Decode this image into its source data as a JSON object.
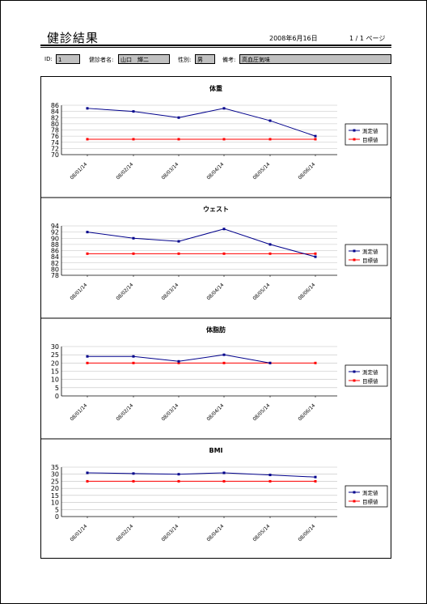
{
  "header": {
    "title": "健診結果",
    "date": "2008年6月16日",
    "page": "1 / 1 ページ"
  },
  "fields": {
    "id_label": "ID:",
    "id_value": "1",
    "name_label": "健診者名:",
    "name_value": "山口　輝二",
    "sex_label": "性別:",
    "sex_value": "男",
    "note_label": "備考:",
    "note_value": "高血圧気味"
  },
  "legend": {
    "measured": "測定値",
    "target": "目標値"
  },
  "colors": {
    "measured": "#00008b",
    "target": "#ff0000",
    "grid": "#c0c0c0"
  },
  "chart_data": [
    {
      "type": "line",
      "title": "体重",
      "x": [
        "08/01/14",
        "08/02/14",
        "08/03/14",
        "08/04/14",
        "08/05/14",
        "08/06/14"
      ],
      "ylim": [
        70,
        86
      ],
      "yticks": [
        70,
        72,
        74,
        76,
        78,
        80,
        82,
        84,
        86
      ],
      "series": [
        {
          "name": "測定値",
          "values": [
            85,
            84,
            82,
            85,
            81,
            76
          ]
        },
        {
          "name": "目標値",
          "values": [
            75,
            75,
            75,
            75,
            75,
            75
          ]
        }
      ]
    },
    {
      "type": "line",
      "title": "ウェスト",
      "x": [
        "08/01/14",
        "08/02/14",
        "08/03/14",
        "08/04/14",
        "08/05/14",
        "08/06/14"
      ],
      "ylim": [
        78,
        94
      ],
      "yticks": [
        78,
        80,
        82,
        84,
        86,
        88,
        90,
        92,
        94
      ],
      "series": [
        {
          "name": "測定値",
          "values": [
            92,
            90,
            89,
            93,
            88,
            84
          ]
        },
        {
          "name": "目標値",
          "values": [
            85,
            85,
            85,
            85,
            85,
            85
          ]
        }
      ]
    },
    {
      "type": "line",
      "title": "体脂肪",
      "x": [
        "08/01/14",
        "08/02/14",
        "08/03/14",
        "08/04/14",
        "08/05/14",
        "08/06/14"
      ],
      "ylim": [
        0,
        30
      ],
      "yticks": [
        0,
        5,
        10,
        15,
        20,
        25,
        30
      ],
      "series": [
        {
          "name": "測定値",
          "values": [
            24,
            24,
            21,
            25,
            20,
            null
          ]
        },
        {
          "name": "目標値",
          "values": [
            20,
            20,
            20,
            20,
            20,
            20
          ]
        }
      ]
    },
    {
      "type": "line",
      "title": "BMI",
      "x": [
        "08/01/14",
        "08/02/14",
        "08/03/14",
        "08/04/14",
        "08/05/14",
        "08/06/14"
      ],
      "ylim": [
        0,
        35
      ],
      "yticks": [
        0,
        5,
        10,
        15,
        20,
        25,
        30,
        35
      ],
      "series": [
        {
          "name": "測定値",
          "values": [
            31,
            30.5,
            30,
            31,
            29.5,
            28
          ]
        },
        {
          "name": "目標値",
          "values": [
            25,
            25,
            25,
            25,
            25,
            25
          ]
        }
      ]
    }
  ]
}
